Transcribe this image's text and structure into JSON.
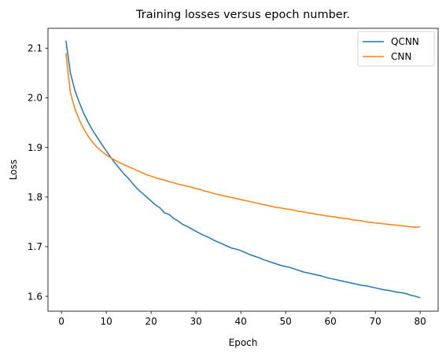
{
  "chart_data": {
    "type": "line",
    "title": "Training losses versus epoch number.",
    "xlabel": "Epoch",
    "ylabel": "Loss",
    "xlim": [
      -3,
      84
    ],
    "ylim": [
      1.57,
      2.14
    ],
    "xticks": [
      0,
      10,
      20,
      30,
      40,
      50,
      60,
      70,
      80
    ],
    "yticks": [
      1.6,
      1.7,
      1.8,
      1.9,
      2.0,
      2.1
    ],
    "ytick_labels": [
      "1.6",
      "1.7",
      "1.8",
      "1.9",
      "2.0",
      "2.1"
    ],
    "grid": false,
    "legend_position": "top-right",
    "series": [
      {
        "name": "QCNN",
        "color": "#1f77b4",
        "x": [
          1,
          2,
          3,
          4,
          5,
          6,
          7,
          8,
          9,
          10,
          11,
          12,
          13,
          14,
          15,
          16,
          17,
          18,
          19,
          20,
          21,
          22,
          23,
          24,
          25,
          26,
          27,
          28,
          29,
          30,
          31,
          32,
          33,
          34,
          35,
          36,
          37,
          38,
          39,
          40,
          41,
          42,
          43,
          44,
          45,
          46,
          47,
          48,
          49,
          50,
          51,
          52,
          53,
          54,
          55,
          56,
          57,
          58,
          59,
          60,
          61,
          62,
          63,
          64,
          65,
          66,
          67,
          68,
          69,
          70,
          71,
          72,
          73,
          74,
          75,
          76,
          77,
          78,
          79,
          80
        ],
        "values": [
          2.115,
          2.05,
          2.015,
          1.99,
          1.968,
          1.95,
          1.934,
          1.92,
          1.906,
          1.893,
          1.88,
          1.868,
          1.857,
          1.846,
          1.837,
          1.826,
          1.816,
          1.808,
          1.8,
          1.792,
          1.784,
          1.778,
          1.768,
          1.765,
          1.757,
          1.752,
          1.745,
          1.741,
          1.736,
          1.731,
          1.726,
          1.722,
          1.718,
          1.713,
          1.709,
          1.705,
          1.701,
          1.697,
          1.695,
          1.692,
          1.688,
          1.684,
          1.681,
          1.678,
          1.674,
          1.671,
          1.668,
          1.665,
          1.662,
          1.66,
          1.658,
          1.655,
          1.652,
          1.649,
          1.647,
          1.645,
          1.643,
          1.641,
          1.638,
          1.636,
          1.634,
          1.632,
          1.63,
          1.628,
          1.626,
          1.624,
          1.622,
          1.621,
          1.619,
          1.617,
          1.615,
          1.613,
          1.612,
          1.61,
          1.608,
          1.607,
          1.605,
          1.602,
          1.6,
          1.597
        ]
      },
      {
        "name": "CNN",
        "color": "#ff7f0e",
        "x": [
          1,
          2,
          3,
          4,
          5,
          6,
          7,
          8,
          9,
          10,
          11,
          12,
          13,
          14,
          15,
          16,
          17,
          18,
          19,
          20,
          21,
          22,
          23,
          24,
          25,
          26,
          27,
          28,
          29,
          30,
          31,
          32,
          33,
          34,
          35,
          36,
          37,
          38,
          39,
          40,
          41,
          42,
          43,
          44,
          45,
          46,
          47,
          48,
          49,
          50,
          51,
          52,
          53,
          54,
          55,
          56,
          57,
          58,
          59,
          60,
          61,
          62,
          63,
          64,
          65,
          66,
          67,
          68,
          69,
          70,
          71,
          72,
          73,
          74,
          75,
          76,
          77,
          78,
          79,
          80
        ],
        "values": [
          2.09,
          2.01,
          1.978,
          1.955,
          1.937,
          1.922,
          1.91,
          1.9,
          1.892,
          1.885,
          1.879,
          1.874,
          1.869,
          1.865,
          1.861,
          1.857,
          1.853,
          1.849,
          1.845,
          1.842,
          1.839,
          1.836,
          1.834,
          1.831,
          1.829,
          1.826,
          1.824,
          1.822,
          1.82,
          1.817,
          1.815,
          1.812,
          1.81,
          1.807,
          1.805,
          1.803,
          1.801,
          1.799,
          1.797,
          1.795,
          1.793,
          1.791,
          1.789,
          1.787,
          1.785,
          1.783,
          1.781,
          1.779,
          1.778,
          1.776,
          1.775,
          1.773,
          1.771,
          1.77,
          1.768,
          1.767,
          1.765,
          1.764,
          1.762,
          1.761,
          1.76,
          1.758,
          1.757,
          1.756,
          1.754,
          1.753,
          1.752,
          1.75,
          1.749,
          1.748,
          1.747,
          1.746,
          1.745,
          1.744,
          1.743,
          1.742,
          1.741,
          1.74,
          1.739,
          1.74
        ]
      }
    ]
  }
}
